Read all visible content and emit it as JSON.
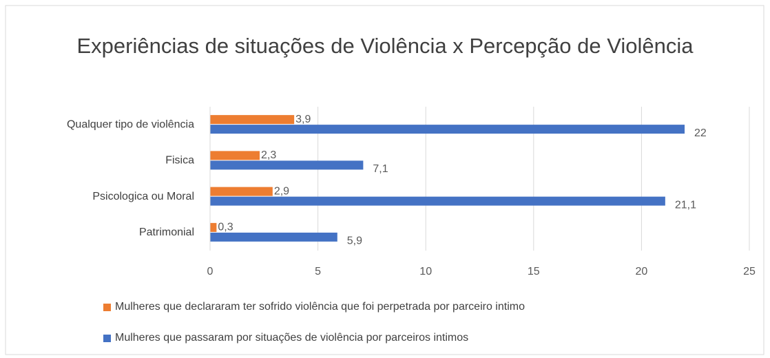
{
  "chart_data": {
    "type": "bar",
    "orientation": "horizontal",
    "title": "Experiências de situações de Violência x Percepção de Violência",
    "categories": [
      "Qualquer tipo de violência",
      "Fisica",
      "Psicologica ou Moral",
      "Patrimonial"
    ],
    "series": [
      {
        "name": "Mulheres que declararam ter sofrido violência que foi perpetrada por parceiro intimo",
        "color": "#ed7d31",
        "values": [
          3.9,
          2.3,
          2.9,
          0.3
        ],
        "value_labels": [
          "3,9",
          "2,3",
          "2,9",
          "0,3"
        ]
      },
      {
        "name": "Mulheres que passaram por situações de violência por parceiros intimos",
        "color": "#4472c4",
        "values": [
          22,
          7.1,
          21.1,
          5.9
        ],
        "value_labels": [
          "22",
          "7,1",
          "21,1",
          "5,9"
        ]
      }
    ],
    "xlim": [
      0,
      25
    ],
    "xticks": [
      0,
      5,
      10,
      15,
      20,
      25
    ],
    "grid": true,
    "legend": "bottom"
  }
}
